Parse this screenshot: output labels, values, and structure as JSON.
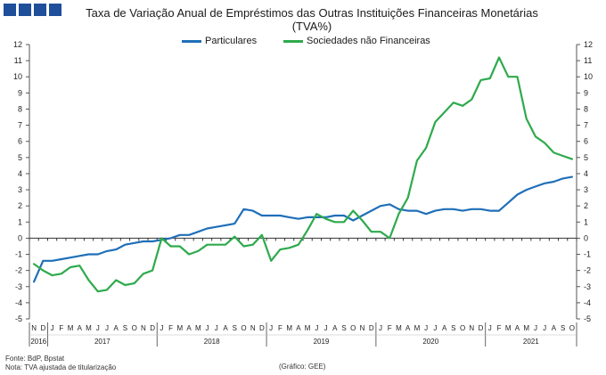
{
  "title_line1": "Taxa de Variação Anual de Empréstimos das Outras Instituições Financeiras Monetárias",
  "title_line2": "(TVA%)",
  "footer": {
    "source": "Fonte: BdP, Bpstat",
    "note": "Nota: TVA ajustada de titularização",
    "credit": "(Gráfico: GEE)"
  },
  "colors": {
    "brand": "#1f4e9b"
  },
  "chart_data": {
    "type": "line",
    "ylim": [
      -5,
      12
    ],
    "yticks": [
      -5,
      -4,
      -3,
      -2,
      -1,
      0,
      1,
      2,
      3,
      4,
      5,
      6,
      7,
      8,
      9,
      10,
      11,
      12
    ],
    "grid": false,
    "legend_position": "top",
    "x_month_letters": [
      "N",
      "D",
      "J",
      "F",
      "M",
      "A",
      "M",
      "J",
      "J",
      "A",
      "S",
      "O",
      "N",
      "D",
      "J",
      "F",
      "M",
      "A",
      "M",
      "J",
      "J",
      "A",
      "S",
      "O",
      "N",
      "D",
      "J",
      "F",
      "M",
      "A",
      "M",
      "J",
      "J",
      "A",
      "S",
      "O",
      "N",
      "D",
      "J",
      "F",
      "M",
      "A",
      "M",
      "J",
      "J",
      "A",
      "S",
      "O",
      "N",
      "D",
      "J",
      "F",
      "M",
      "A",
      "M",
      "J",
      "J",
      "A",
      "S",
      "O"
    ],
    "year_labels": [
      "2016",
      "2017",
      "2018",
      "2019",
      "2020",
      "2021"
    ],
    "series": [
      {
        "name": "Particulares",
        "color": "#1f6fb8",
        "values": [
          -2.7,
          -1.4,
          -1.4,
          -1.3,
          -1.2,
          -1.1,
          -1.0,
          -1.0,
          -0.8,
          -0.7,
          -0.4,
          -0.3,
          -0.2,
          -0.2,
          -0.1,
          0.0,
          0.2,
          0.2,
          0.4,
          0.6,
          0.7,
          0.8,
          0.9,
          1.8,
          1.7,
          1.4,
          1.4,
          1.4,
          1.3,
          1.2,
          1.3,
          1.3,
          1.3,
          1.4,
          1.4,
          1.1,
          1.4,
          1.7,
          2.0,
          2.1,
          1.8,
          1.7,
          1.7,
          1.5,
          1.7,
          1.8,
          1.8,
          1.7,
          1.8,
          1.8,
          1.7,
          1.7,
          2.2,
          2.7,
          3.0,
          3.2,
          3.4,
          3.5,
          3.7,
          3.8
        ]
      },
      {
        "name": "Sociedades não Financeiras",
        "color": "#2eaa4c",
        "values": [
          -1.6,
          -2.0,
          -2.3,
          -2.2,
          -1.8,
          -1.7,
          -2.6,
          -3.3,
          -3.2,
          -2.6,
          -2.9,
          -2.8,
          -2.2,
          -2.0,
          0.0,
          -0.5,
          -0.5,
          -1.0,
          -0.8,
          -0.4,
          -0.4,
          -0.4,
          0.1,
          -0.5,
          -0.4,
          0.2,
          -1.4,
          -0.7,
          -0.6,
          -0.4,
          0.5,
          1.5,
          1.2,
          1.0,
          1.0,
          1.7,
          1.1,
          0.4,
          0.4,
          0.0,
          1.5,
          2.5,
          4.8,
          5.6,
          7.2,
          7.8,
          8.4,
          8.2,
          8.6,
          9.8,
          9.9,
          11.2,
          10.0,
          10.0,
          7.4,
          6.3,
          5.9,
          5.3,
          5.1,
          4.9
        ]
      }
    ]
  }
}
